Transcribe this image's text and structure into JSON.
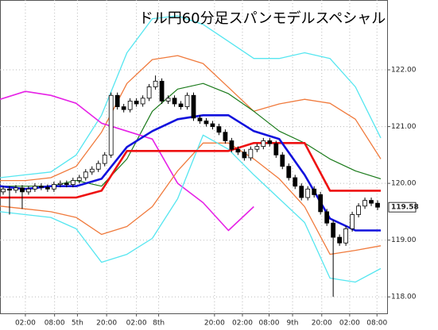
{
  "chart_data": {
    "type": "candlestick",
    "title": "ドル円60分足スパンモデルスペシャル",
    "xlim": [
      0,
      61
    ],
    "ylim": [
      117.71,
      123.23
    ],
    "yticks": [
      {
        "value": 118,
        "label": "118.00"
      },
      {
        "value": 119,
        "label": "119.00"
      },
      {
        "value": 120,
        "label": "120.00"
      },
      {
        "value": 121,
        "label": "121.00"
      },
      {
        "value": 122,
        "label": "122.00"
      }
    ],
    "xticks": [
      {
        "value": 4,
        "label": "02:00"
      },
      {
        "value": 8.6,
        "label": "08:00"
      },
      {
        "value": 12.2,
        "label": "5th"
      },
      {
        "value": 16.8,
        "label": "20:00"
      },
      {
        "value": 21.5,
        "label": "02:00"
      },
      {
        "value": 25,
        "label": "8th"
      },
      {
        "value": 33.8,
        "label": "20:00"
      },
      {
        "value": 38.2,
        "label": "02:00"
      },
      {
        "value": 42.4,
        "label": "08:00"
      },
      {
        "value": 46.1,
        "label": "9th"
      },
      {
        "value": 50.7,
        "label": "20:00"
      },
      {
        "value": 55.1,
        "label": "02:00"
      },
      {
        "value": 59.4,
        "label": "08:00"
      }
    ],
    "grid": true,
    "current_price": {
      "value": 119.58,
      "label": "119.58"
    },
    "candles": {
      "open": [
        119.85,
        119.9,
        119.88,
        119.92,
        119.85,
        119.9,
        119.95,
        119.93,
        119.9,
        119.98,
        120.0,
        119.98,
        120.05,
        120.1,
        120.2,
        120.25,
        120.35,
        120.5,
        121.55,
        121.35,
        121.3,
        121.45,
        121.4,
        121.5,
        121.7,
        121.8,
        121.45,
        121.5,
        121.4,
        121.35,
        121.55,
        121.15,
        121.1,
        121.05,
        121.0,
        120.9,
        120.75,
        120.6,
        120.55,
        120.45,
        120.6,
        120.65,
        120.75,
        120.7,
        120.5,
        120.3,
        120.1,
        119.95,
        119.75,
        119.9,
        119.8,
        119.5,
        119.3,
        119.05,
        118.95,
        119.2,
        119.45,
        119.6,
        119.7,
        119.65
      ],
      "high": [
        119.95,
        119.95,
        119.97,
        119.97,
        119.95,
        120.0,
        120.0,
        119.98,
        120.03,
        120.05,
        120.05,
        120.1,
        120.15,
        120.25,
        120.3,
        120.4,
        120.55,
        121.6,
        121.6,
        121.4,
        121.5,
        121.5,
        121.55,
        121.75,
        121.9,
        121.85,
        121.55,
        121.55,
        121.45,
        121.6,
        121.6,
        121.2,
        121.15,
        121.1,
        121.05,
        120.95,
        120.8,
        120.65,
        120.6,
        120.65,
        120.7,
        120.8,
        120.8,
        120.75,
        120.55,
        120.35,
        120.15,
        120.0,
        119.95,
        119.95,
        119.85,
        119.55,
        119.35,
        119.1,
        119.25,
        119.5,
        119.65,
        119.75,
        119.75,
        119.7
      ],
      "low": [
        119.8,
        119.45,
        119.83,
        119.55,
        119.8,
        119.85,
        119.88,
        119.85,
        119.85,
        119.93,
        119.93,
        119.93,
        120.0,
        120.05,
        120.15,
        120.2,
        120.3,
        120.45,
        121.3,
        121.25,
        121.25,
        121.35,
        121.35,
        121.45,
        121.65,
        121.4,
        121.4,
        121.35,
        121.3,
        121.3,
        121.1,
        121.05,
        121.0,
        120.95,
        120.85,
        120.7,
        120.55,
        120.5,
        120.4,
        120.4,
        120.55,
        120.6,
        120.65,
        120.45,
        120.25,
        120.05,
        119.9,
        119.7,
        119.7,
        119.75,
        119.45,
        119.25,
        118.0,
        118.9,
        118.9,
        119.15,
        119.4,
        119.55,
        119.6,
        119.53
      ],
      "close": [
        119.9,
        119.88,
        119.92,
        119.85,
        119.9,
        119.95,
        119.93,
        119.9,
        119.98,
        120.0,
        119.98,
        120.05,
        120.1,
        120.2,
        120.25,
        120.35,
        120.5,
        121.55,
        121.35,
        121.3,
        121.45,
        121.4,
        121.5,
        121.7,
        121.8,
        121.45,
        121.5,
        121.4,
        121.35,
        121.55,
        121.15,
        121.1,
        121.05,
        121.0,
        120.9,
        120.75,
        120.6,
        120.55,
        120.45,
        120.6,
        120.65,
        120.75,
        120.7,
        120.5,
        120.3,
        120.1,
        119.95,
        119.75,
        119.9,
        119.8,
        119.5,
        119.3,
        119.05,
        118.95,
        119.2,
        119.45,
        119.6,
        119.7,
        119.65,
        119.58
      ]
    },
    "line_x": [
      0,
      4,
      8,
      12,
      16,
      20,
      24,
      28,
      32,
      36,
      40,
      44,
      48,
      52,
      56,
      60
    ],
    "lines": [
      {
        "color": "#55e6f0",
        "width": 1.3,
        "values": [
          120.1,
          120.15,
          120.2,
          120.5,
          121.2,
          122.3,
          122.9,
          122.95,
          122.8,
          122.5,
          122.2,
          122.2,
          122.3,
          122.2,
          121.7,
          120.8
        ]
      },
      {
        "color": "#f07a3c",
        "width": 1.3,
        "values": [
          120.05,
          120.05,
          120.1,
          120.3,
          120.9,
          121.76,
          122.18,
          122.25,
          122.11,
          121.69,
          121.27,
          121.4,
          121.48,
          121.41,
          121.13,
          120.43
        ]
      },
      {
        "color": "#1a7a1a",
        "width": 1.2,
        "values": [
          119.95,
          119.95,
          119.95,
          120.05,
          119.95,
          120.43,
          121.27,
          121.66,
          121.76,
          121.58,
          121.27,
          120.92,
          120.71,
          120.43,
          120.22,
          120.08
        ]
      },
      {
        "color": "#e622e6",
        "width": 1.6,
        "values": [
          121.48,
          121.62,
          121.55,
          121.41,
          121.06,
          120.92,
          120.78,
          120.0,
          119.66,
          119.17,
          119.59,
          null,
          null,
          null,
          null,
          null
        ]
      },
      {
        "color": "#f07a3c",
        "width": 1.3,
        "values": [
          119.6,
          119.55,
          119.5,
          119.4,
          119.1,
          119.24,
          119.59,
          120.22,
          120.71,
          120.71,
          120.43,
          120.08,
          119.59,
          118.75,
          118.82,
          118.9
        ]
      },
      {
        "color": "#55e6f0",
        "width": 1.3,
        "values": [
          119.5,
          119.45,
          119.4,
          119.2,
          118.61,
          118.75,
          119.03,
          119.73,
          120.85,
          120.6,
          120.15,
          119.73,
          119.31,
          118.33,
          118.26,
          118.5
        ]
      },
      {
        "color": "#ee1111",
        "width": 2.6,
        "values": [
          119.75,
          119.75,
          119.75,
          119.75,
          119.87,
          120.57,
          120.57,
          120.57,
          120.57,
          120.57,
          120.71,
          120.71,
          120.71,
          119.87,
          119.87,
          119.87
        ]
      },
      {
        "color": "#1111dd",
        "width": 2.6,
        "values": [
          119.95,
          119.9,
          119.95,
          119.95,
          120.08,
          120.64,
          120.92,
          121.13,
          121.2,
          121.2,
          120.92,
          120.78,
          120.15,
          119.38,
          119.17,
          119.17
        ]
      }
    ]
  }
}
